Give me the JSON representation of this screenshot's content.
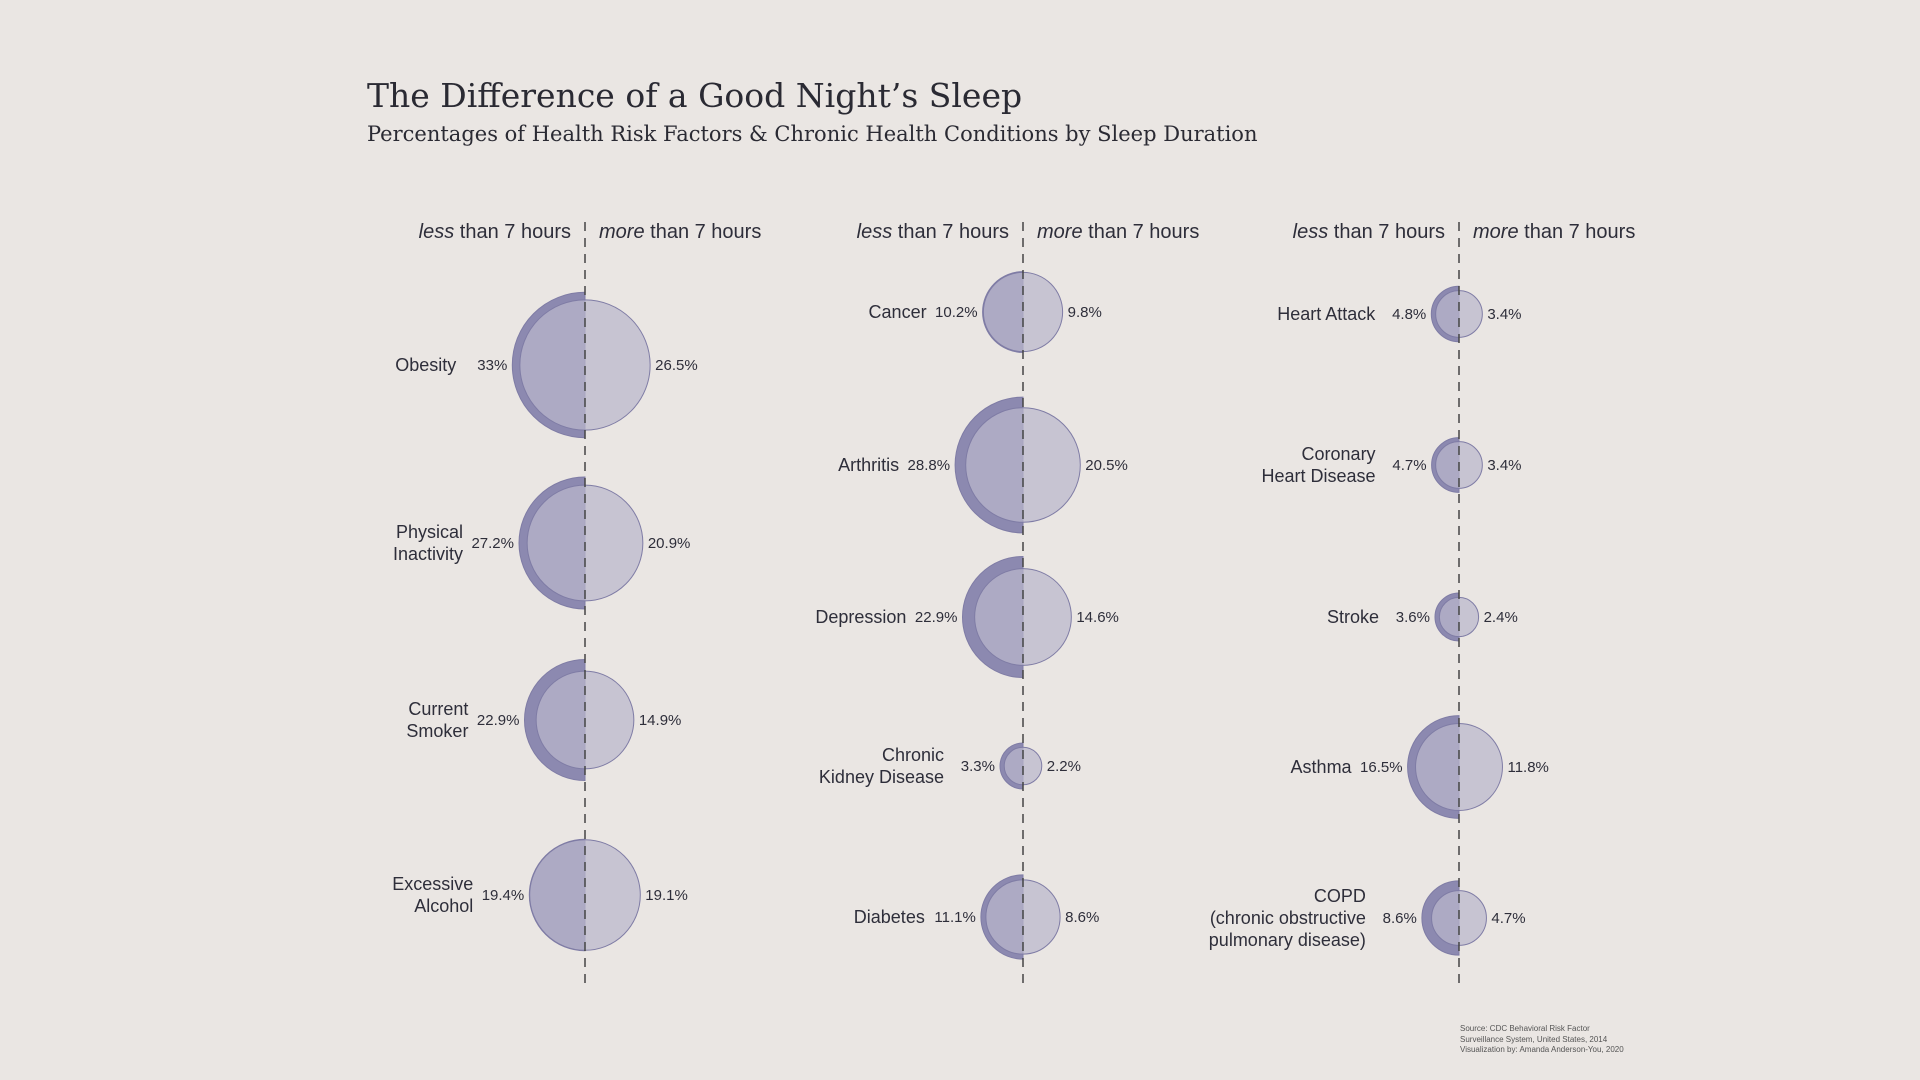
{
  "title": "The Difference of a Good Night’s Sleep",
  "subtitle": "Percentages of Health Risk Factors & Chronic Health Conditions by Sleep Duration",
  "header_labels": {
    "less_em": "less",
    "more_em": "more",
    "suffix": " than 7 hours"
  },
  "colors": {
    "background": "#eae6e3",
    "less_fill": "#8c89b0",
    "more_fill": "#bab7cc",
    "stroke": "#7f7ca5",
    "axis": "#444444"
  },
  "source": [
    "Source: CDC Behavioral Risk Factor",
    "Surveillance System, United States, 2014",
    "Visualization by: Amanda Anderson-You, 2020"
  ],
  "chart_data": {
    "type": "bubble-comparison",
    "series": [
      {
        "name": "less than 7 hours"
      },
      {
        "name": "more than 7 hours"
      }
    ],
    "panels": [
      {
        "items": [
          {
            "label": [
              "Obesity"
            ],
            "less": 33,
            "more": 26.5,
            "less_text": "33%",
            "more_text": "26.5%"
          },
          {
            "label": [
              "Physical",
              "Inactivity"
            ],
            "less": 27.2,
            "more": 20.9,
            "less_text": "27.2%",
            "more_text": "20.9%"
          },
          {
            "label": [
              "Current",
              "Smoker"
            ],
            "less": 22.9,
            "more": 14.9,
            "less_text": "22.9%",
            "more_text": "14.9%"
          },
          {
            "label": [
              "Excessive",
              "Alcohol"
            ],
            "less": 19.4,
            "more": 19.1,
            "less_text": "19.4%",
            "more_text": "19.1%"
          }
        ]
      },
      {
        "items": [
          {
            "label": [
              "Cancer"
            ],
            "less": 10.2,
            "more": 9.8,
            "less_text": "10.2%",
            "more_text": "9.8%"
          },
          {
            "label": [
              "Arthritis"
            ],
            "less": 28.8,
            "more": 20.5,
            "less_text": "28.8%",
            "more_text": "20.5%"
          },
          {
            "label": [
              "Depression"
            ],
            "less": 22.9,
            "more": 14.6,
            "less_text": "22.9%",
            "more_text": "14.6%"
          },
          {
            "label": [
              "Chronic",
              "Kidney Disease"
            ],
            "less": 3.3,
            "more": 2.2,
            "less_text": "3.3%",
            "more_text": "2.2%"
          },
          {
            "label": [
              "Diabetes"
            ],
            "less": 11.1,
            "more": 8.6,
            "less_text": "11.1%",
            "more_text": "8.6%"
          }
        ]
      },
      {
        "items": [
          {
            "label": [
              "Heart Attack"
            ],
            "less": 4.8,
            "more": 3.4,
            "less_text": "4.8%",
            "more_text": "3.4%"
          },
          {
            "label": [
              "Coronary",
              "Heart Disease"
            ],
            "less": 4.7,
            "more": 3.4,
            "less_text": "4.7%",
            "more_text": "3.4%"
          },
          {
            "label": [
              "Stroke"
            ],
            "less": 3.6,
            "more": 2.4,
            "less_text": "3.6%",
            "more_text": "2.4%"
          },
          {
            "label": [
              "Asthma"
            ],
            "less": 16.5,
            "more": 11.8,
            "less_text": "16.5%",
            "more_text": "11.8%"
          },
          {
            "label": [
              "COPD",
              "(chronic obstructive",
              "pulmonary disease)"
            ],
            "less": 8.6,
            "more": 4.7,
            "less_text": "8.6%",
            "more_text": "4.7%"
          }
        ]
      }
    ]
  }
}
